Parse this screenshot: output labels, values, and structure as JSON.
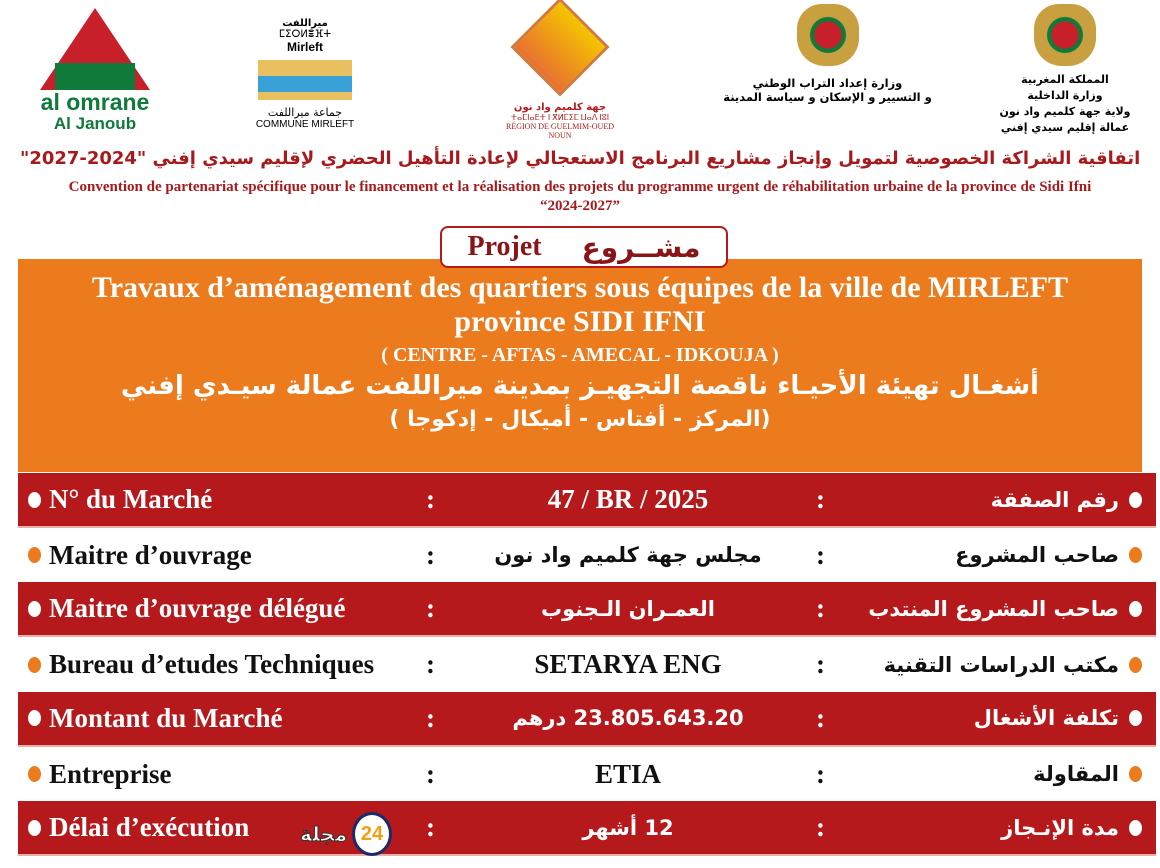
{
  "logos": {
    "alomran": {
      "name": "al omrane",
      "sub": "Al Janoub"
    },
    "mirleft": {
      "ar_top": "ميراللفت",
      "tifinagh": "ⵎⵉⵔⵍⴻⴼⵜ",
      "latin": "Mirleft",
      "ar": "جماعة ميراللفت",
      "fr": "COMMUNE MIRLEFT"
    },
    "region": {
      "ar": "جهة كلميم واد نون",
      "tifinagh": "ⵜⴰⵎⵏⴰⴹⵜ ⵏ ⴳⵍⵎⵉⵎ ⵡⴰⴷ ⵏⵓⵏ",
      "fr": "RÉGION DE GUELMIM-OUED NOUN"
    },
    "ministry": {
      "line1": "وزارة إعداد التراب الوطني",
      "line2": "و التسيير و الإسكان و سياسة المدينة"
    },
    "kingdom": {
      "line1": "المملكة المغربية",
      "line2": "وزارة الداخلية",
      "line3": "ولاية جهة كلميم واد نون",
      "line4": "عمالة إقليم سيدي إفني"
    }
  },
  "header": {
    "title_ar": "اتفاقية الشراكة الخصوصية لتمويل وإنجاز مشاريع البرنامج الاستعجالي لإعادة التأهيل الحضري لإقليم سيدي إفني \"2024-2027\"",
    "title_fr": "Convention de partenariat spécifique pour le financement et la réalisation des projets du programme urgent de réhabilitation urbaine de la province de Sidi Ifni",
    "years": "“2024-2027”"
  },
  "badge": {
    "fr": "Projet",
    "ar": "مشــروع"
  },
  "project": {
    "title_fr": "Travaux d’aménagement des quartiers sous équipes de la ville de MIRLEFT province SIDI IFNI",
    "areas_fr": "( CENTRE - AFTAS - AMECAL - IDKOUJA )",
    "title_ar": "أشغـال تهيئة الأحيـاء ناقصة التجهيـز بمدينة ميراللفت عمالة سيـدي إفني",
    "areas_ar": "(المركز - أفتاس - أميكال - إدكوجا )"
  },
  "rows": [
    {
      "fr": "N° du Marché",
      "value": "47 / BR / 2025",
      "ar": "رقم الصفقة"
    },
    {
      "fr": "Maitre d’ouvrage",
      "value": "مجلس جهة كلميم واد نون",
      "ar": "صاحب المشروع"
    },
    {
      "fr": "Maitre d’ouvrage délégué",
      "value": "العمـران الـجنوب",
      "ar": "صاحب المشروع المنتدب"
    },
    {
      "fr": "Bureau d’etudes Techniques",
      "value": "SETARYA ENG",
      "ar": "مكتب الدراسات التقنية"
    },
    {
      "fr": "Montant du Marché",
      "value": "23.805.643.20 درهم",
      "ar": "تكلفة الأشغال"
    },
    {
      "fr": "Entreprise",
      "value": "ETIA",
      "ar": "المقاولة"
    },
    {
      "fr": "Délai d’exécution",
      "value": "12 أشهر",
      "ar": "مدة الإنـجاز"
    }
  ],
  "separator": ":",
  "watermark": {
    "num": "24",
    "text": "مجلة"
  },
  "colors": {
    "red": "#b5191c",
    "orange": "#ec7b1e",
    "green": "#0f7a3a"
  }
}
